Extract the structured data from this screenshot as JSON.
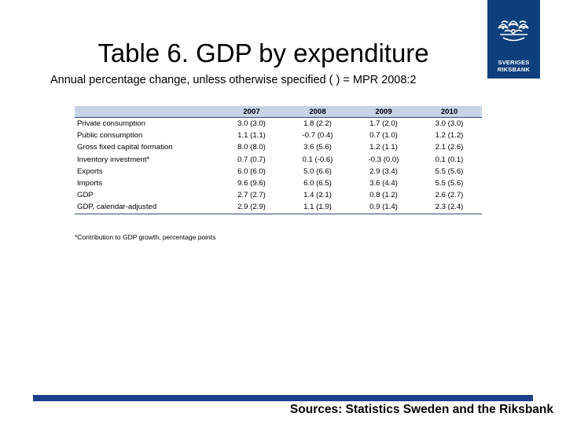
{
  "slide": {
    "title": "Table 6. GDP by expenditure",
    "subtitle": "Annual percentage change, unless otherwise specified ( ) = MPR 2008:2",
    "footnote": "*Contribution to GDP growth, percentage points",
    "sources": "Sources: Statistics Sweden and the Riksbank"
  },
  "logo": {
    "line1": "SVERIGES",
    "line2": "RIKSBANK",
    "icon": "riksbank-crown-emblem-icon",
    "background_color": "#0d3f7c"
  },
  "table": {
    "columns": [
      "",
      "2007",
      "2008",
      "2009",
      "2010"
    ],
    "rows": [
      {
        "label": "Private consumption",
        "values": [
          "3.0 (3.0)",
          "1.8 (2.2)",
          "1.7 (2.0)",
          "3.0 (3.0)"
        ]
      },
      {
        "label": "Public consumption",
        "values": [
          "1.1 (1.1)",
          "-0.7 (0.4)",
          "0.7 (1.0)",
          "1.2 (1.2)"
        ]
      },
      {
        "label": "Gross fixed capital formation",
        "values": [
          "8.0 (8.0)",
          "3.6 (5.6)",
          "1.2 (1.1)",
          "2.1 (2.6)"
        ]
      },
      {
        "label": "Inventory investment*",
        "values": [
          "0.7 (0.7)",
          "0.1 (-0.6)",
          "-0.3 (0.0)",
          "0.1 (0.1)"
        ]
      },
      {
        "label": "Exports",
        "values": [
          "6.0 (6.0)",
          "5.0 (6.6)",
          "2.9 (3.4)",
          "5.5 (5.6)"
        ]
      },
      {
        "label": "Imports",
        "values": [
          "9.6 (9.6)",
          "6.0 (6.5)",
          "3.6 (4.4)",
          "5.5 (5.6)"
        ]
      },
      {
        "label": "GDP",
        "values": [
          "2.7 (2.7)",
          "1.4 (2.1)",
          "0.8 (1.2)",
          "2.6 (2.7)"
        ]
      },
      {
        "label": "GDP, calendar-adjusted",
        "values": [
          "2.9 (2.9)",
          "1.1 (1.9)",
          "0.9 (1.4)",
          "2.3 (2.4)"
        ]
      }
    ],
    "header_color": "#c9d3e8",
    "rule_color": "#334a7a"
  },
  "footer": {
    "bar_color": "#1e3f8a"
  }
}
